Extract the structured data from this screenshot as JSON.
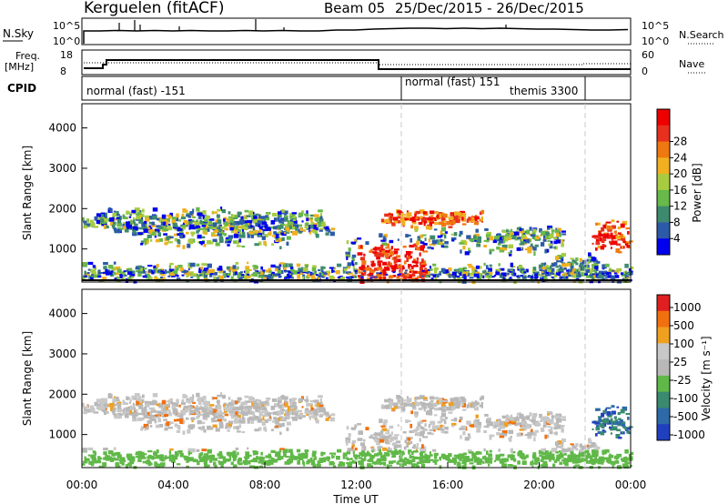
{
  "header": {
    "radar_title": "Kerguelen (fitACF)",
    "beam_label": "Beam 05",
    "date_range": "25/Dec/2015 - 26/Dec/2015"
  },
  "panels": {
    "nsky": {
      "label": "N.Sky",
      "left_top_tick": "10^5",
      "left_bottom_tick": "10^0",
      "right_top_tick": "10^5",
      "right_bottom_tick": "10^0",
      "right_label": "N.Search"
    },
    "freq": {
      "label_line1": "Freq.",
      "label_line2": "[MHz]",
      "left_top_tick": "18",
      "left_bottom_tick": "8",
      "right_top_tick": "60",
      "right_bottom_tick": "0",
      "right_label": "Nave"
    },
    "cpid": {
      "label": "CPID",
      "segments": [
        {
          "text": "normal (fast) -151"
        },
        {
          "text": "normal (fast) 151"
        },
        {
          "text": "themis 3300"
        }
      ]
    }
  },
  "chart_data": [
    {
      "type": "heatmap",
      "name": "Power",
      "xlabel": "",
      "ylabel": "Slant Range [km]",
      "x_range": [
        "00:00",
        "24:00"
      ],
      "ylim": [
        180,
        4600
      ],
      "y_ticks": [
        "1000",
        "2000",
        "3000",
        "4000"
      ],
      "colorbar_label": "Power [dB]",
      "colorbar_ticks": [
        "4",
        "8",
        "12",
        "16",
        "20",
        "24",
        "28"
      ],
      "colorbar_colors": [
        "#0000ee",
        "#2c5aa8",
        "#3e8a6e",
        "#68b84a",
        "#a8cc40",
        "#f0b020",
        "#f07810",
        "#e83020",
        "#ee0000"
      ]
    },
    {
      "type": "heatmap",
      "name": "Velocity",
      "xlabel": "Time UT",
      "ylabel": "Slant Range [km]",
      "x_range": [
        "00:00",
        "24:00"
      ],
      "x_ticks": [
        "00:00",
        "04:00",
        "08:00",
        "12:00",
        "16:00",
        "20:00",
        "00:00"
      ],
      "ylim": [
        180,
        4600
      ],
      "y_ticks": [
        "1000",
        "2000",
        "3000",
        "4000"
      ],
      "colorbar_label": "Velocity [m s⁻¹]",
      "colorbar_ticks": [
        "1000",
        "500",
        "100",
        "25",
        "-25",
        "-100",
        "-500",
        "-1000"
      ],
      "colorbar_colors": [
        "#2040c0",
        "#2e6aa8",
        "#3a8a70",
        "#60b848",
        "#b8b8b8",
        "#c8c8c8",
        "#f0a020",
        "#f07010",
        "#e02020"
      ]
    }
  ],
  "colors": {
    "grid_dash": "#c8c8c8",
    "trace": "#000000"
  }
}
